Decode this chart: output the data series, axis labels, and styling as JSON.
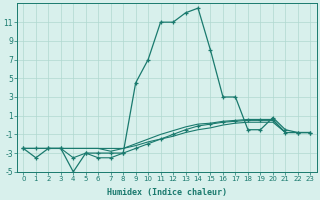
{
  "xlabel": "Humidex (Indice chaleur)",
  "x_values": [
    0,
    1,
    2,
    3,
    4,
    5,
    6,
    7,
    8,
    9,
    10,
    11,
    12,
    13,
    14,
    15,
    16,
    17,
    18,
    19,
    20,
    21,
    22,
    23
  ],
  "line1": [
    -2.5,
    -3.5,
    -2.5,
    -2.5,
    -5,
    -3,
    -3,
    -3,
    -3,
    4.5,
    7,
    11,
    11,
    12,
    12.5,
    8,
    3,
    3,
    -0.5,
    -0.5,
    0.8,
    -0.5,
    -0.8,
    -0.8
  ],
  "line2": [
    -2.5,
    -2.5,
    -2.5,
    -2.5,
    -2.5,
    -2.5,
    -2.5,
    -2.5,
    -2.5,
    -2.2,
    -1.8,
    -1.5,
    -1.2,
    -0.8,
    -0.5,
    -0.3,
    0.0,
    0.2,
    0.3,
    0.3,
    0.3,
    -0.8,
    -0.8,
    -0.8
  ],
  "line3": [
    -2.5,
    -2.5,
    -2.5,
    -2.5,
    -2.5,
    -2.5,
    -2.5,
    -2.8,
    -2.5,
    -2.0,
    -1.5,
    -1.0,
    -0.6,
    -0.2,
    0.1,
    0.2,
    0.4,
    0.5,
    0.6,
    0.6,
    0.6,
    -0.8,
    -0.8,
    -0.8
  ],
  "line4": [
    -2.5,
    -2.5,
    -2.5,
    -2.5,
    -3.5,
    -3.0,
    -3.5,
    -3.5,
    -3.0,
    -2.5,
    -2.0,
    -1.5,
    -1.0,
    -0.5,
    -0.1,
    0.1,
    0.3,
    0.4,
    0.5,
    0.5,
    0.5,
    -0.8,
    -0.8,
    -0.8
  ],
  "line_color": "#1a7a6e",
  "bg_color": "#d8f0ec",
  "grid_color": "#b0d8d0",
  "ylim": [
    -5,
    13
  ],
  "yticks": [
    -5,
    -3,
    -1,
    1,
    3,
    5,
    7,
    9,
    11
  ],
  "xticks": [
    0,
    1,
    2,
    3,
    4,
    5,
    6,
    7,
    8,
    9,
    10,
    11,
    12,
    13,
    14,
    15,
    16,
    17,
    18,
    19,
    20,
    21,
    22,
    23
  ]
}
